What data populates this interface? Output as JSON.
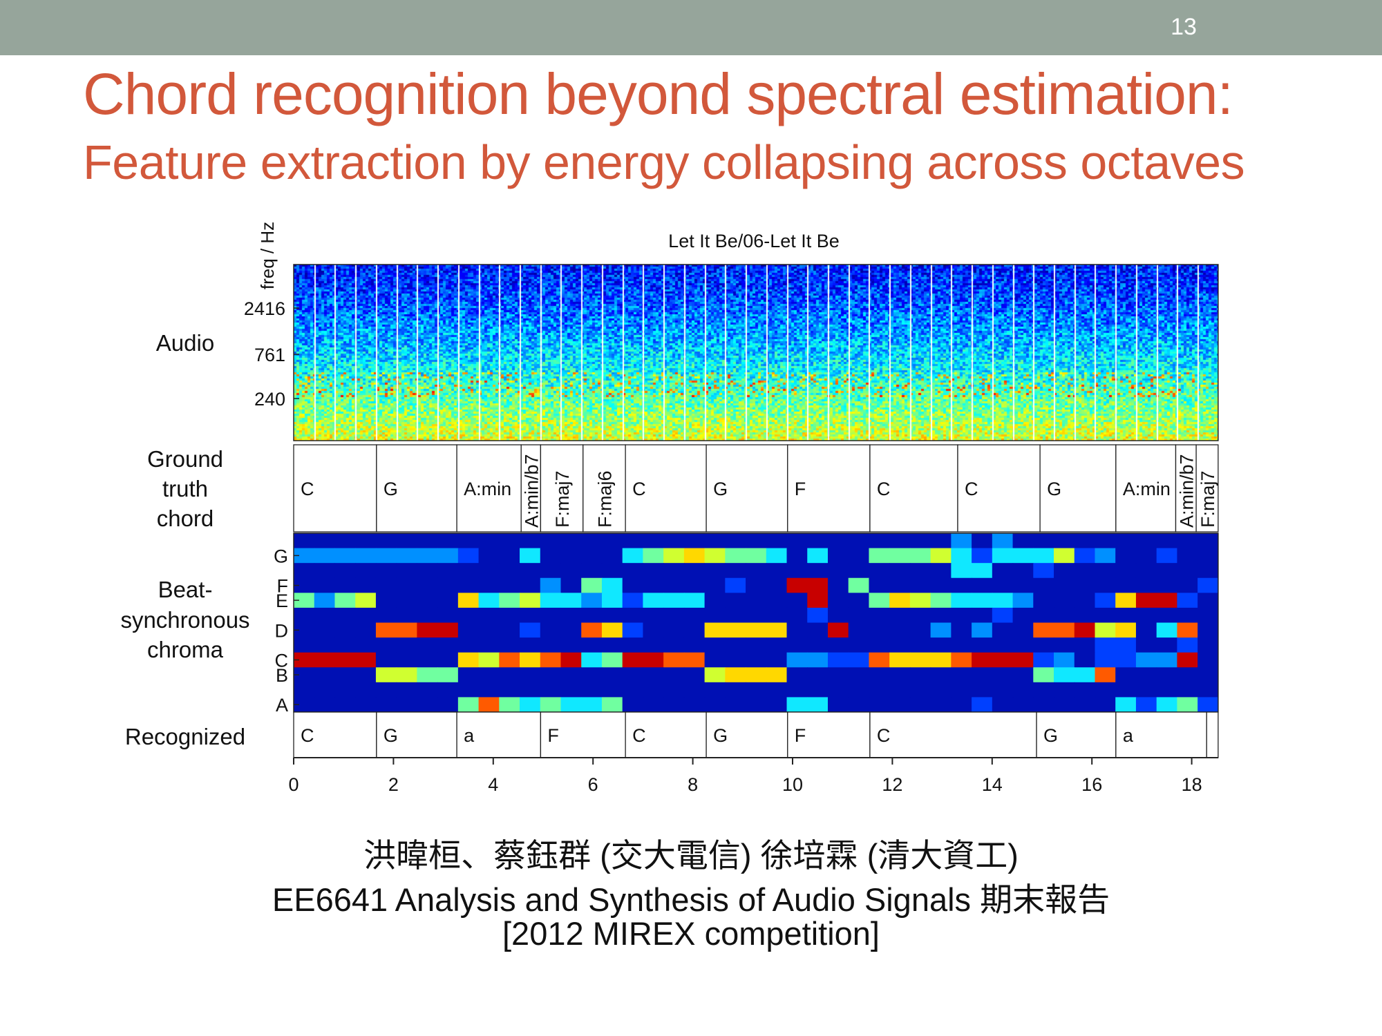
{
  "slide": {
    "page_number": "13",
    "title": "Chord recognition beyond spectral estimation:",
    "subtitle": "Feature extraction by energy collapsing across octaves",
    "footer_line1": "洪暐桓、蔡鈺群 (交大電信) 徐培霖 (清大資工)",
    "footer_line2": "EE6641 Analysis and Synthesis of Audio Signals 期末報告",
    "footer_line3": "[2012 MIREX competition]",
    "colors": {
      "bar": "#96a59b",
      "title": "#d2583b"
    }
  },
  "chart_data": {
    "type": "heatmap",
    "title": "Let It Be/06-Let It Be",
    "xlabel": "",
    "xlim": [
      0,
      18.53
    ],
    "x_ticks": [
      "0",
      "2",
      "4",
      "6",
      "8",
      "10",
      "12",
      "14",
      "16",
      "18"
    ],
    "panel_labels": {
      "audio": "Audio",
      "ground_truth": [
        "Ground",
        "truth",
        "chord"
      ],
      "chroma": [
        "Beat-",
        "synchronous",
        "chroma"
      ],
      "recognized": "Recognized"
    },
    "spectrogram": {
      "ylabel": "freq / Hz",
      "y_ticks": [
        "2416",
        "761",
        "240"
      ]
    },
    "ground_truth_chords": [
      {
        "start": 0.0,
        "end": 1.66,
        "label": "C"
      },
      {
        "start": 1.66,
        "end": 3.27,
        "label": "G"
      },
      {
        "start": 3.27,
        "end": 4.56,
        "label": "A:min"
      },
      {
        "start": 4.56,
        "end": 4.95,
        "label": "A:min/b7"
      },
      {
        "start": 4.95,
        "end": 5.8,
        "label": "F:maj7"
      },
      {
        "start": 5.8,
        "end": 6.65,
        "label": "F:maj6"
      },
      {
        "start": 6.65,
        "end": 8.27,
        "label": "C"
      },
      {
        "start": 8.27,
        "end": 9.9,
        "label": "G"
      },
      {
        "start": 9.9,
        "end": 11.55,
        "label": "F"
      },
      {
        "start": 11.55,
        "end": 13.31,
        "label": "C"
      },
      {
        "start": 13.31,
        "end": 14.96,
        "label": "C"
      },
      {
        "start": 14.96,
        "end": 16.48,
        "label": "G"
      },
      {
        "start": 16.48,
        "end": 17.68,
        "label": "A:min"
      },
      {
        "start": 17.68,
        "end": 18.09,
        "label": "A:min/b7"
      },
      {
        "start": 18.09,
        "end": 18.53,
        "label": "F:maj7"
      }
    ],
    "recognized_chords": [
      {
        "start": 0.0,
        "end": 1.66,
        "label": "C"
      },
      {
        "start": 1.66,
        "end": 3.27,
        "label": "G"
      },
      {
        "start": 3.27,
        "end": 4.95,
        "label": "a"
      },
      {
        "start": 4.95,
        "end": 6.65,
        "label": "F"
      },
      {
        "start": 6.65,
        "end": 8.27,
        "label": "C"
      },
      {
        "start": 8.27,
        "end": 9.9,
        "label": "G"
      },
      {
        "start": 9.9,
        "end": 11.55,
        "label": "F"
      },
      {
        "start": 11.55,
        "end": 14.89,
        "label": "C"
      },
      {
        "start": 14.89,
        "end": 16.48,
        "label": "G"
      },
      {
        "start": 16.48,
        "end": 18.3,
        "label": "a"
      },
      {
        "start": 18.3,
        "end": 18.53,
        "label": ""
      }
    ],
    "chroma": {
      "y_tick_labels": [
        "G",
        "F",
        "E",
        "D",
        "C",
        "B",
        "A"
      ],
      "rows_top_to_bottom": [
        "G#",
        "G",
        "F#",
        "F",
        "E",
        "D#",
        "D",
        "C#",
        "C",
        "B",
        "A#",
        "A"
      ],
      "beats": 45,
      "intensity_scale": "0-9",
      "values": [
        "111111111111111111111111111111113131111111111",
        "333333332114111145676554141155564244462311211",
        "111111111111111111111111111111114411211111111",
        "111111111111315411111211991511111111111111112",
        "535611117456443424441111191157654443111279921",
        "111111111111111111111111121111111121111111111",
        "111188991112118721117777119111131311889671481",
        "111111111111111111111111111111111111111221121",
        "999911117687894599881111332287778999231223391",
        "111166551111111111116777111111111111544811111",
        "111111111111111111111111111111111111111111111",
        "111111115854544511111111441111111211111142452"
      ]
    }
  }
}
